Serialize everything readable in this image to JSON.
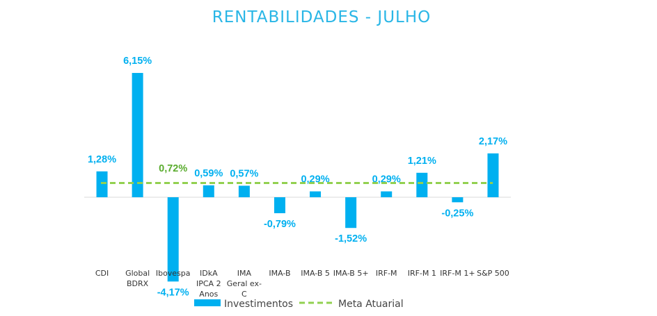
{
  "chart_data": {
    "type": "bar",
    "title": "RENTABILIDADES - JULHO",
    "categories": [
      [
        "CDI"
      ],
      [
        "Global",
        "BDRX"
      ],
      [
        "Ibovespa"
      ],
      [
        "IDkA",
        "IPCA 2",
        "Anos"
      ],
      [
        "IMA",
        "Geral ex-",
        "C"
      ],
      [
        "IMA-B"
      ],
      [
        "IMA-B 5"
      ],
      [
        "IMA-B 5+"
      ],
      [
        "IRF-M"
      ],
      [
        "IRF-M 1"
      ],
      [
        "IRF-M 1+"
      ],
      [
        "S&P 500"
      ]
    ],
    "series": [
      {
        "name": "Investimentos",
        "values": [
          1.28,
          6.15,
          -4.17,
          0.59,
          0.57,
          -0.79,
          0.29,
          -1.52,
          0.29,
          1.21,
          -0.25,
          2.17
        ],
        "labels": [
          "1,28%",
          "6,15%",
          "-4,17%",
          "0,59%",
          "0,57%",
          "-0,79%",
          "0,29%",
          "-1,52%",
          "0,29%",
          "1,21%",
          "-0,25%",
          "2,17%"
        ],
        "color": "#00b0f0"
      },
      {
        "name": "Meta Atuarial",
        "value": 0.72,
        "label": "0,72%",
        "color": "#92d050"
      }
    ],
    "ylim": [
      -4.5,
      6.5
    ],
    "grid": false,
    "legend_position": "bottom"
  }
}
